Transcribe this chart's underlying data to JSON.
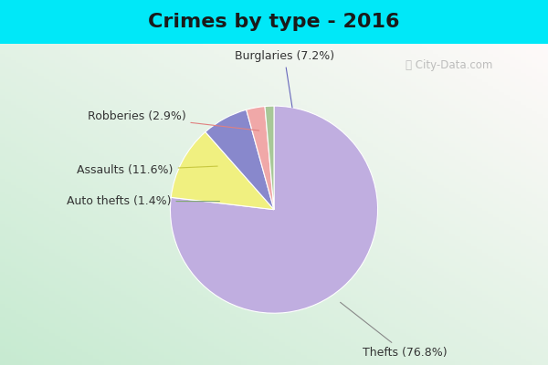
{
  "title": "Crimes by type - 2016",
  "labels": [
    "Thefts",
    "Assaults",
    "Burglaries",
    "Robberies",
    "Auto thefts"
  ],
  "values": [
    76.8,
    11.6,
    7.2,
    2.9,
    1.4
  ],
  "colors": [
    "#c0aee0",
    "#f0f080",
    "#8888cc",
    "#f0a8a8",
    "#a8c898"
  ],
  "bg_top_color": "#00e8f8",
  "bg_main_color_tl": "#c8e8d0",
  "bg_main_color_br": "#e8f0f8",
  "title_fontsize": 16,
  "label_fontsize": 9,
  "watermark": "City-Data.com"
}
